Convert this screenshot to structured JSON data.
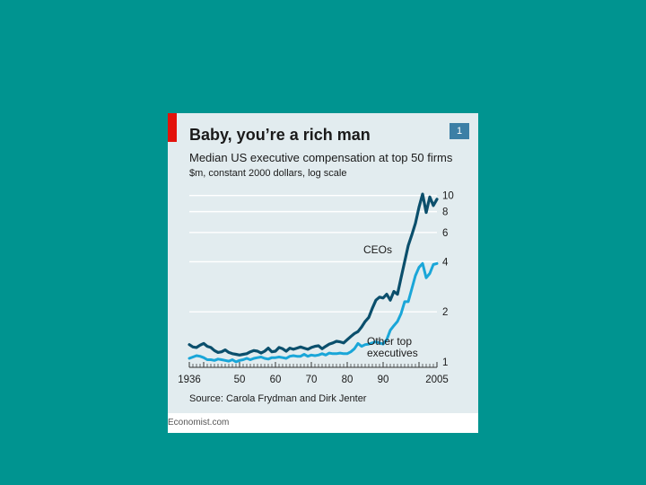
{
  "badge": "1",
  "footer": "Economist.com",
  "colors": {
    "background": "#009490",
    "panel": "#e2ecef",
    "red_tab": "#e3120b",
    "ceo": "#0b4f6c",
    "other": "#1aa6d8",
    "grid": "#ffffff",
    "badge": "#3c7fa6"
  },
  "chart_data": {
    "type": "line",
    "title": "Baby, you’re a rich man",
    "subtitle": "Median US executive compensation at top 50 firms",
    "units": "$m, constant 2000 dollars, log scale",
    "source": "Source: Carola Frydman and Dirk Jenter",
    "y_scale": "log",
    "ylim": [
      0.85,
      11
    ],
    "xlim": [
      1936,
      2005
    ],
    "y_ticks": [
      {
        "value": 10,
        "label": "10"
      },
      {
        "value": 8,
        "label": "8"
      },
      {
        "value": 6,
        "label": "6"
      },
      {
        "value": 4,
        "label": "4"
      },
      {
        "value": 2,
        "label": "2"
      },
      {
        "value": 1,
        "label": "1"
      }
    ],
    "x_ticks": [
      {
        "value": 1936,
        "label": "1936"
      },
      {
        "value": 1950,
        "label": "50"
      },
      {
        "value": 1960,
        "label": "60"
      },
      {
        "value": 1970,
        "label": "70"
      },
      {
        "value": 1980,
        "label": "80"
      },
      {
        "value": 1990,
        "label": "90"
      },
      {
        "value": 2005,
        "label": "2005"
      }
    ],
    "annotations": [
      {
        "series": "CEOs",
        "text": [
          "CEOs"
        ]
      },
      {
        "series": "Other top executives",
        "text": [
          "Other top",
          "executives"
        ]
      }
    ],
    "series": [
      {
        "name": "CEOs",
        "color": "#0b4f6c",
        "x": [
          1936,
          1937,
          1938,
          1939,
          1940,
          1941,
          1942,
          1943,
          1944,
          1945,
          1946,
          1947,
          1948,
          1949,
          1950,
          1951,
          1952,
          1953,
          1954,
          1955,
          1956,
          1957,
          1958,
          1959,
          1960,
          1961,
          1962,
          1963,
          1964,
          1965,
          1966,
          1967,
          1968,
          1969,
          1970,
          1971,
          1972,
          1973,
          1974,
          1975,
          1976,
          1977,
          1978,
          1979,
          1980,
          1981,
          1982,
          1983,
          1984,
          1985,
          1986,
          1987,
          1988,
          1989,
          1990,
          1991,
          1992,
          1993,
          1994,
          1995,
          1996,
          1997,
          1998,
          1999,
          2000,
          2001,
          2002,
          2003,
          2004,
          2005
        ],
        "values": [
          1.27,
          1.23,
          1.22,
          1.26,
          1.29,
          1.24,
          1.22,
          1.17,
          1.14,
          1.15,
          1.18,
          1.14,
          1.12,
          1.11,
          1.1,
          1.11,
          1.12,
          1.15,
          1.17,
          1.16,
          1.13,
          1.16,
          1.21,
          1.15,
          1.16,
          1.22,
          1.2,
          1.16,
          1.21,
          1.19,
          1.21,
          1.23,
          1.21,
          1.19,
          1.22,
          1.24,
          1.25,
          1.2,
          1.24,
          1.28,
          1.3,
          1.33,
          1.32,
          1.3,
          1.36,
          1.42,
          1.48,
          1.52,
          1.62,
          1.75,
          1.85,
          2.1,
          2.35,
          2.45,
          2.42,
          2.55,
          2.35,
          2.65,
          2.55,
          3.2,
          4.0,
          5.0,
          5.8,
          6.8,
          8.5,
          10.2,
          7.9,
          9.8,
          8.7,
          9.5
        ]
      },
      {
        "name": "Other top executives",
        "color": "#1aa6d8",
        "x": [
          1936,
          1937,
          1938,
          1939,
          1940,
          1941,
          1942,
          1943,
          1944,
          1945,
          1946,
          1947,
          1948,
          1949,
          1950,
          1951,
          1952,
          1953,
          1954,
          1955,
          1956,
          1957,
          1958,
          1959,
          1960,
          1961,
          1962,
          1963,
          1964,
          1965,
          1966,
          1967,
          1968,
          1969,
          1970,
          1971,
          1972,
          1973,
          1974,
          1975,
          1976,
          1977,
          1978,
          1979,
          1980,
          1981,
          1982,
          1983,
          1984,
          1985,
          1986,
          1987,
          1988,
          1989,
          1990,
          1991,
          1992,
          1993,
          1994,
          1995,
          1996,
          1997,
          1998,
          1999,
          2000,
          2001,
          2002,
          2003,
          2004,
          2005
        ],
        "values": [
          1.05,
          1.07,
          1.09,
          1.08,
          1.06,
          1.03,
          1.03,
          1.02,
          1.04,
          1.03,
          1.02,
          1.01,
          1.03,
          1.0,
          1.02,
          1.03,
          1.05,
          1.03,
          1.05,
          1.06,
          1.07,
          1.05,
          1.04,
          1.06,
          1.06,
          1.07,
          1.06,
          1.05,
          1.08,
          1.09,
          1.08,
          1.08,
          1.11,
          1.08,
          1.1,
          1.09,
          1.1,
          1.12,
          1.1,
          1.13,
          1.12,
          1.12,
          1.13,
          1.12,
          1.12,
          1.15,
          1.2,
          1.29,
          1.24,
          1.27,
          1.28,
          1.3,
          1.32,
          1.3,
          1.28,
          1.36,
          1.55,
          1.65,
          1.75,
          1.95,
          2.3,
          2.3,
          2.75,
          3.3,
          3.7,
          3.9,
          3.2,
          3.4,
          3.85,
          3.9
        ]
      }
    ]
  }
}
